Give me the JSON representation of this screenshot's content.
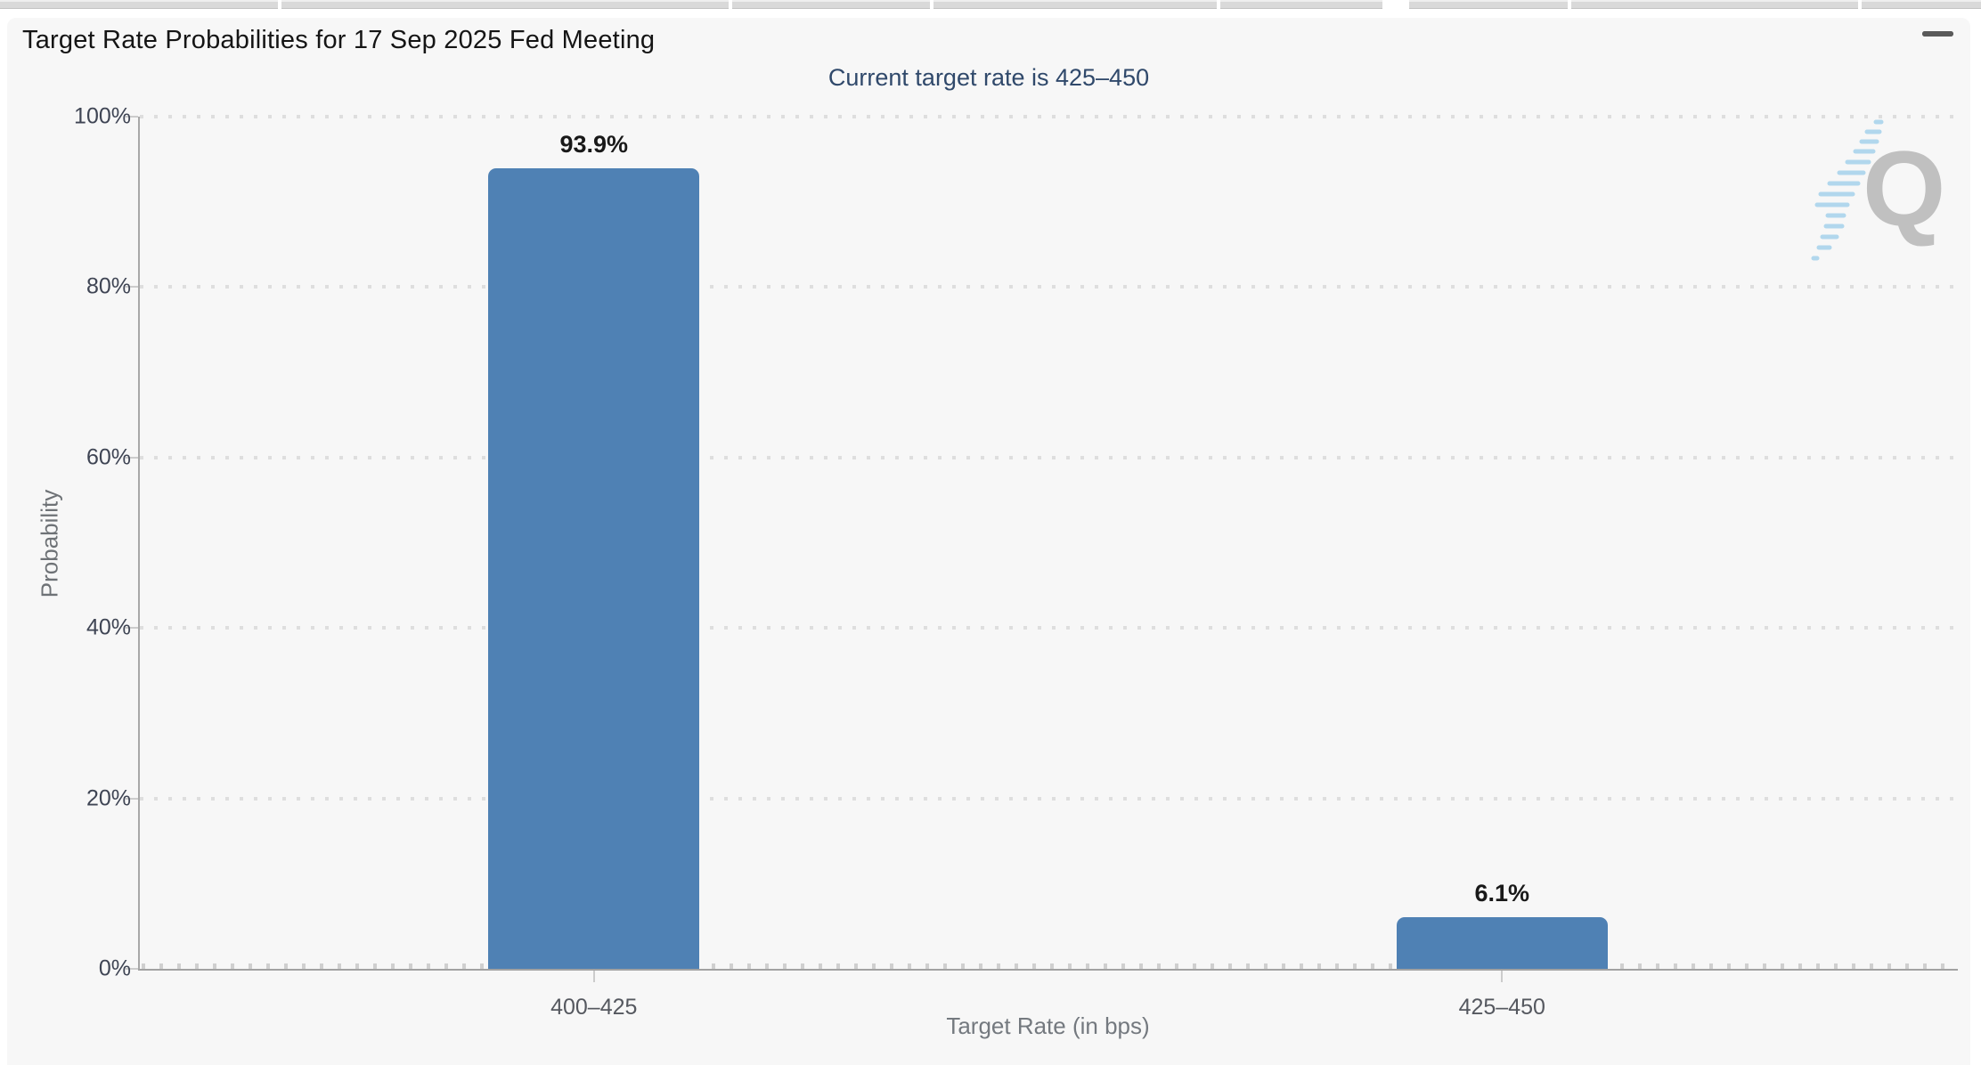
{
  "header": {
    "title": "Target Rate Probabilities for 17 Sep 2025 Fed Meeting",
    "menu_tooltip": "Chart context menu"
  },
  "chart_data": {
    "type": "bar",
    "title": "Target Rate Probabilities for 17 Sep 2025 Fed Meeting",
    "subtitle": "Current target rate is 425–450",
    "categories": [
      "400–425",
      "425–450"
    ],
    "values": [
      93.9,
      6.1
    ],
    "value_labels": [
      "93.9%",
      "6.1%"
    ],
    "xlabel": "Target Rate (in bps)",
    "ylabel": "Probability",
    "ylim": [
      0,
      100
    ],
    "ytick_values": [
      0,
      20,
      40,
      60,
      80,
      100
    ],
    "ytick_labels": [
      "0%",
      "20%",
      "40%",
      "60%",
      "80%",
      "100%"
    ],
    "grid": "dotted horizontal gridlines on",
    "legend": "none",
    "bar_color": "#4f81b4"
  },
  "watermark": {
    "letter": "Q"
  },
  "colors": {
    "bar": "#4f81b4",
    "subtitle_text": "#30496b",
    "card_background": "#f7f7f7",
    "axis_line": "#a2a2a2",
    "watermark_grey": "#b3b3b3",
    "watermark_blue": "#a5d2ec"
  }
}
